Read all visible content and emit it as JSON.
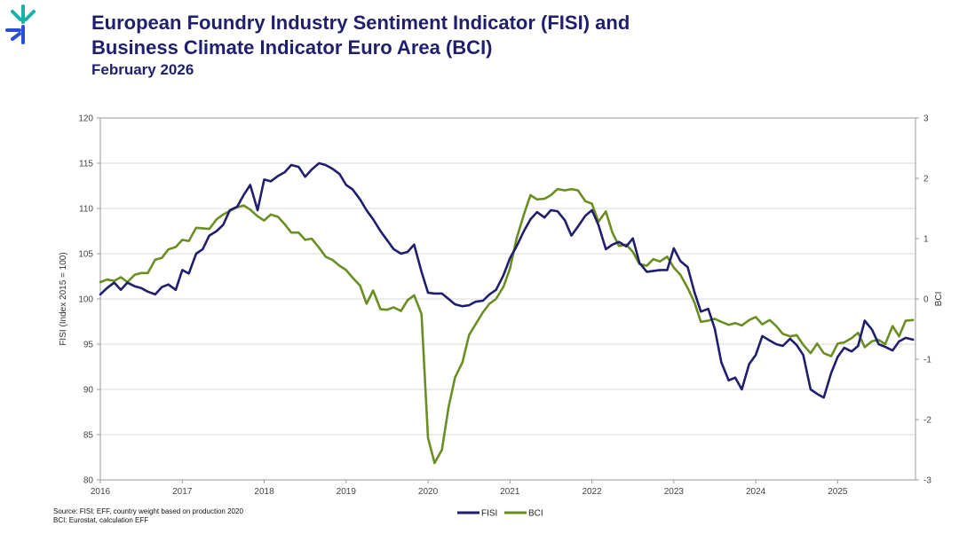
{
  "header": {
    "title_line1": "European Foundry Industry Sentiment Indicator (FISI) and",
    "title_line2": "Business Climate Indicator Euro Area (BCI)",
    "subtitle": "February 2026"
  },
  "footer": {
    "source_line1": "Source: FISI: EFF, country weight based on production 2020",
    "source_line2": "BCI: Eurostat, calculation EFF"
  },
  "colors": {
    "fisi": "#1f1f6e",
    "bci": "#6b8e23",
    "logo_teal": "#19b3a6",
    "logo_blue": "#2a4fd6"
  },
  "chart_data": {
    "type": "line",
    "x_ticks": [
      "2016",
      "2017",
      "2018",
      "2019",
      "2020",
      "2021",
      "2022",
      "2023",
      "2024",
      "2025"
    ],
    "xlim": [
      2016.0,
      2025.95
    ],
    "ylabel": "FISI (Index 2015 = 100)",
    "ylim": [
      80,
      120
    ],
    "y_ticks": [
      80,
      85,
      90,
      95,
      100,
      105,
      110,
      115,
      120
    ],
    "y2label": "BCI",
    "y2lim": [
      -3,
      3
    ],
    "y2_ticks": [
      -3,
      -2,
      -1,
      0,
      1,
      2,
      3
    ],
    "grid": true,
    "legend": "bottom-center",
    "series": [
      {
        "name": "FISI",
        "axis": "left",
        "points": [
          [
            2016.0,
            100.5
          ],
          [
            2016.08,
            101.2
          ],
          [
            2016.17,
            101.8
          ],
          [
            2016.25,
            101.0
          ],
          [
            2016.33,
            101.8
          ],
          [
            2016.42,
            101.4
          ],
          [
            2016.5,
            101.2
          ],
          [
            2016.58,
            100.8
          ],
          [
            2016.67,
            100.5
          ],
          [
            2016.75,
            101.3
          ],
          [
            2016.83,
            101.6
          ],
          [
            2016.92,
            101.0
          ],
          [
            2017.0,
            103.2
          ],
          [
            2017.08,
            102.8
          ],
          [
            2017.17,
            105.0
          ],
          [
            2017.25,
            105.5
          ],
          [
            2017.33,
            107.0
          ],
          [
            2017.42,
            107.5
          ],
          [
            2017.5,
            108.2
          ],
          [
            2017.58,
            109.8
          ],
          [
            2017.67,
            110.2
          ],
          [
            2017.75,
            111.5
          ],
          [
            2017.83,
            112.6
          ],
          [
            2017.92,
            109.8
          ],
          [
            2018.0,
            113.2
          ],
          [
            2018.08,
            113.0
          ],
          [
            2018.17,
            113.6
          ],
          [
            2018.25,
            114.0
          ],
          [
            2018.33,
            114.8
          ],
          [
            2018.42,
            114.6
          ],
          [
            2018.5,
            113.5
          ],
          [
            2018.58,
            114.3
          ],
          [
            2018.67,
            115.0
          ],
          [
            2018.75,
            114.8
          ],
          [
            2018.83,
            114.4
          ],
          [
            2018.92,
            113.8
          ],
          [
            2019.0,
            112.6
          ],
          [
            2019.08,
            112.1
          ],
          [
            2019.17,
            111.0
          ],
          [
            2019.25,
            109.8
          ],
          [
            2019.33,
            108.8
          ],
          [
            2019.42,
            107.5
          ],
          [
            2019.5,
            106.5
          ],
          [
            2019.58,
            105.5
          ],
          [
            2019.67,
            105.0
          ],
          [
            2019.75,
            105.2
          ],
          [
            2019.83,
            106.0
          ],
          [
            2019.92,
            103.0
          ],
          [
            2020.0,
            100.7
          ],
          [
            2020.08,
            100.6
          ],
          [
            2020.17,
            100.6
          ],
          [
            2020.25,
            100.0
          ],
          [
            2020.33,
            99.4
          ],
          [
            2020.42,
            99.2
          ],
          [
            2020.5,
            99.3
          ],
          [
            2020.58,
            99.7
          ],
          [
            2020.67,
            99.8
          ],
          [
            2020.75,
            100.5
          ],
          [
            2020.83,
            101.0
          ],
          [
            2020.92,
            102.6
          ],
          [
            2021.0,
            104.5
          ],
          [
            2021.08,
            105.8
          ],
          [
            2021.17,
            107.5
          ],
          [
            2021.25,
            108.8
          ],
          [
            2021.33,
            109.6
          ],
          [
            2021.42,
            109.0
          ],
          [
            2021.5,
            109.8
          ],
          [
            2021.58,
            109.7
          ],
          [
            2021.67,
            108.7
          ],
          [
            2021.75,
            107.0
          ],
          [
            2021.83,
            108.0
          ],
          [
            2021.92,
            109.2
          ],
          [
            2022.0,
            109.8
          ],
          [
            2022.08,
            108.2
          ],
          [
            2022.17,
            105.5
          ],
          [
            2022.25,
            106.0
          ],
          [
            2022.33,
            106.3
          ],
          [
            2022.42,
            105.8
          ],
          [
            2022.5,
            106.7
          ],
          [
            2022.58,
            104.0
          ],
          [
            2022.67,
            103.0
          ],
          [
            2022.75,
            103.1
          ],
          [
            2022.83,
            103.2
          ],
          [
            2022.92,
            103.2
          ],
          [
            2023.0,
            105.6
          ],
          [
            2023.08,
            104.2
          ],
          [
            2023.17,
            103.5
          ],
          [
            2023.25,
            100.8
          ],
          [
            2023.33,
            98.6
          ],
          [
            2023.42,
            98.9
          ],
          [
            2023.5,
            96.7
          ],
          [
            2023.58,
            93.0
          ],
          [
            2023.67,
            91.0
          ],
          [
            2023.75,
            91.3
          ],
          [
            2023.83,
            90.0
          ],
          [
            2023.92,
            92.8
          ],
          [
            2024.0,
            93.8
          ],
          [
            2024.08,
            95.9
          ],
          [
            2024.17,
            95.4
          ],
          [
            2024.25,
            95.0
          ],
          [
            2024.33,
            94.8
          ],
          [
            2024.42,
            95.6
          ],
          [
            2024.5,
            94.9
          ],
          [
            2024.58,
            93.8
          ],
          [
            2024.67,
            90.0
          ],
          [
            2024.75,
            89.5
          ],
          [
            2024.83,
            89.1
          ],
          [
            2024.92,
            91.8
          ],
          [
            2025.0,
            93.6
          ],
          [
            2025.08,
            94.6
          ],
          [
            2025.17,
            94.2
          ],
          [
            2025.25,
            94.8
          ],
          [
            2025.33,
            97.6
          ],
          [
            2025.42,
            96.6
          ],
          [
            2025.5,
            95.0
          ],
          [
            2025.58,
            94.7
          ],
          [
            2025.67,
            94.3
          ],
          [
            2025.75,
            95.3
          ],
          [
            2025.83,
            95.7
          ],
          [
            2025.92,
            95.5
          ]
        ]
      },
      {
        "name": "BCI",
        "axis": "right",
        "points": [
          [
            2016.0,
            0.28
          ],
          [
            2016.08,
            0.32
          ],
          [
            2016.17,
            0.3
          ],
          [
            2016.25,
            0.36
          ],
          [
            2016.33,
            0.28
          ],
          [
            2016.42,
            0.4
          ],
          [
            2016.5,
            0.43
          ],
          [
            2016.58,
            0.43
          ],
          [
            2016.67,
            0.65
          ],
          [
            2016.75,
            0.68
          ],
          [
            2016.83,
            0.82
          ],
          [
            2016.92,
            0.86
          ],
          [
            2017.0,
            0.98
          ],
          [
            2017.08,
            0.96
          ],
          [
            2017.17,
            1.18
          ],
          [
            2017.25,
            1.17
          ],
          [
            2017.33,
            1.16
          ],
          [
            2017.42,
            1.32
          ],
          [
            2017.5,
            1.4
          ],
          [
            2017.58,
            1.46
          ],
          [
            2017.67,
            1.52
          ],
          [
            2017.75,
            1.55
          ],
          [
            2017.83,
            1.48
          ],
          [
            2017.92,
            1.37
          ],
          [
            2018.0,
            1.3
          ],
          [
            2018.08,
            1.4
          ],
          [
            2018.17,
            1.36
          ],
          [
            2018.25,
            1.24
          ],
          [
            2018.33,
            1.1
          ],
          [
            2018.42,
            1.1
          ],
          [
            2018.5,
            0.98
          ],
          [
            2018.58,
            1.0
          ],
          [
            2018.67,
            0.85
          ],
          [
            2018.75,
            0.7
          ],
          [
            2018.83,
            0.65
          ],
          [
            2018.92,
            0.55
          ],
          [
            2019.0,
            0.48
          ],
          [
            2019.08,
            0.35
          ],
          [
            2019.17,
            0.22
          ],
          [
            2019.25,
            -0.08
          ],
          [
            2019.33,
            0.14
          ],
          [
            2019.42,
            -0.17
          ],
          [
            2019.5,
            -0.18
          ],
          [
            2019.58,
            -0.14
          ],
          [
            2019.67,
            -0.2
          ],
          [
            2019.75,
            -0.02
          ],
          [
            2019.83,
            0.06
          ],
          [
            2019.92,
            -0.25
          ],
          [
            2020.0,
            -2.3
          ],
          [
            2020.08,
            -2.72
          ],
          [
            2020.17,
            -2.5
          ],
          [
            2020.25,
            -1.8
          ],
          [
            2020.33,
            -1.3
          ],
          [
            2020.42,
            -1.05
          ],
          [
            2020.5,
            -0.6
          ],
          [
            2020.58,
            -0.42
          ],
          [
            2020.67,
            -0.22
          ],
          [
            2020.75,
            -0.08
          ],
          [
            2020.83,
            0.0
          ],
          [
            2020.92,
            0.2
          ],
          [
            2021.0,
            0.5
          ],
          [
            2021.08,
            1.0
          ],
          [
            2021.17,
            1.4
          ],
          [
            2021.25,
            1.72
          ],
          [
            2021.33,
            1.65
          ],
          [
            2021.42,
            1.66
          ],
          [
            2021.5,
            1.72
          ],
          [
            2021.58,
            1.82
          ],
          [
            2021.67,
            1.8
          ],
          [
            2021.75,
            1.82
          ],
          [
            2021.83,
            1.8
          ],
          [
            2021.92,
            1.62
          ],
          [
            2022.0,
            1.58
          ],
          [
            2022.08,
            1.28
          ],
          [
            2022.17,
            1.45
          ],
          [
            2022.25,
            1.1
          ],
          [
            2022.33,
            0.88
          ],
          [
            2022.42,
            0.9
          ],
          [
            2022.5,
            0.78
          ],
          [
            2022.58,
            0.58
          ],
          [
            2022.67,
            0.55
          ],
          [
            2022.75,
            0.66
          ],
          [
            2022.83,
            0.62
          ],
          [
            2022.92,
            0.7
          ],
          [
            2023.0,
            0.52
          ],
          [
            2023.08,
            0.4
          ],
          [
            2023.17,
            0.18
          ],
          [
            2023.25,
            -0.05
          ],
          [
            2023.33,
            -0.38
          ],
          [
            2023.42,
            -0.36
          ],
          [
            2023.5,
            -0.33
          ],
          [
            2023.58,
            -0.38
          ],
          [
            2023.67,
            -0.43
          ],
          [
            2023.75,
            -0.4
          ],
          [
            2023.83,
            -0.44
          ],
          [
            2023.92,
            -0.35
          ],
          [
            2024.0,
            -0.3
          ],
          [
            2024.08,
            -0.42
          ],
          [
            2024.17,
            -0.35
          ],
          [
            2024.25,
            -0.45
          ],
          [
            2024.33,
            -0.58
          ],
          [
            2024.42,
            -0.62
          ],
          [
            2024.5,
            -0.6
          ],
          [
            2024.58,
            -0.76
          ],
          [
            2024.67,
            -0.9
          ],
          [
            2024.75,
            -0.74
          ],
          [
            2024.83,
            -0.9
          ],
          [
            2024.92,
            -0.95
          ],
          [
            2025.0,
            -0.74
          ],
          [
            2025.08,
            -0.72
          ],
          [
            2025.17,
            -0.65
          ],
          [
            2025.25,
            -0.56
          ],
          [
            2025.33,
            -0.8
          ],
          [
            2025.42,
            -0.7
          ],
          [
            2025.5,
            -0.68
          ],
          [
            2025.58,
            -0.75
          ],
          [
            2025.67,
            -0.45
          ],
          [
            2025.75,
            -0.62
          ],
          [
            2025.83,
            -0.36
          ],
          [
            2025.92,
            -0.35
          ]
        ]
      }
    ]
  }
}
